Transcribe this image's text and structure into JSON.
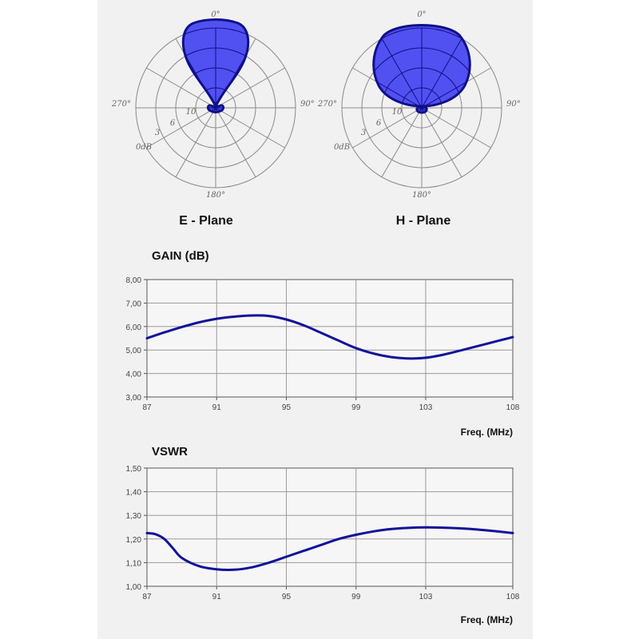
{
  "polar_charts": [
    {
      "title": "E - Plane",
      "angle_labels": [
        "0°",
        "90°",
        "180°",
        "270°"
      ],
      "ring_labels": [
        "0dB",
        "3",
        "6",
        "10"
      ],
      "lobe_color": "#4848f0"
    },
    {
      "title": "H - Plane",
      "angle_labels": [
        "0°",
        "90°",
        "180°",
        "270°"
      ],
      "ring_labels": [
        "0dB",
        "3",
        "6",
        "10"
      ],
      "lobe_color": "#4848f0"
    }
  ],
  "chart_data": [
    {
      "type": "line",
      "title": "GAIN (dB)",
      "xlabel": "Freq. (MHz)",
      "ylabel": "",
      "x_ticks": [
        "87",
        "91",
        "95",
        "99",
        "103",
        "108"
      ],
      "x_tick_values": [
        87,
        91,
        95,
        99,
        103,
        108
      ],
      "y_ticks": [
        "3,00",
        "4,00",
        "5,00",
        "6,00",
        "7,00",
        "8,00"
      ],
      "ylim": [
        3,
        8
      ],
      "xlim": [
        87,
        108
      ],
      "grid": true,
      "series": [
        {
          "color": "#12129a",
          "x": [
            87,
            88,
            89,
            90,
            91,
            92,
            93,
            94,
            95,
            96,
            97,
            98,
            99,
            100,
            101,
            102,
            103,
            104,
            105,
            106,
            107,
            108
          ],
          "y": [
            5.5,
            5.75,
            5.98,
            6.18,
            6.33,
            6.42,
            6.47,
            6.45,
            6.3,
            6.05,
            5.73,
            5.4,
            5.08,
            4.85,
            4.7,
            4.64,
            4.67,
            4.8,
            4.98,
            5.17,
            5.36,
            5.55
          ]
        }
      ]
    },
    {
      "type": "line",
      "title": "VSWR",
      "xlabel": "Freq. (MHz)",
      "ylabel": "",
      "x_ticks": [
        "87",
        "91",
        "95",
        "99",
        "103",
        "108"
      ],
      "x_tick_values": [
        87,
        91,
        95,
        99,
        103,
        108
      ],
      "y_ticks": [
        "1,00",
        "1,10",
        "1,20",
        "1,30",
        "1,40",
        "1,50"
      ],
      "ylim": [
        1.0,
        1.5
      ],
      "xlim": [
        87,
        108
      ],
      "grid": true,
      "series": [
        {
          "color": "#12129a",
          "x": [
            87,
            87.5,
            88,
            88.5,
            89,
            90,
            91,
            92,
            93,
            94,
            95,
            96,
            97,
            98,
            99,
            100,
            101,
            102,
            103,
            104,
            105,
            106,
            107,
            108
          ],
          "y": [
            1.225,
            1.22,
            1.2,
            1.16,
            1.12,
            1.085,
            1.072,
            1.07,
            1.08,
            1.1,
            1.125,
            1.15,
            1.175,
            1.2,
            1.218,
            1.232,
            1.242,
            1.247,
            1.249,
            1.248,
            1.245,
            1.24,
            1.233,
            1.225
          ]
        }
      ]
    }
  ]
}
